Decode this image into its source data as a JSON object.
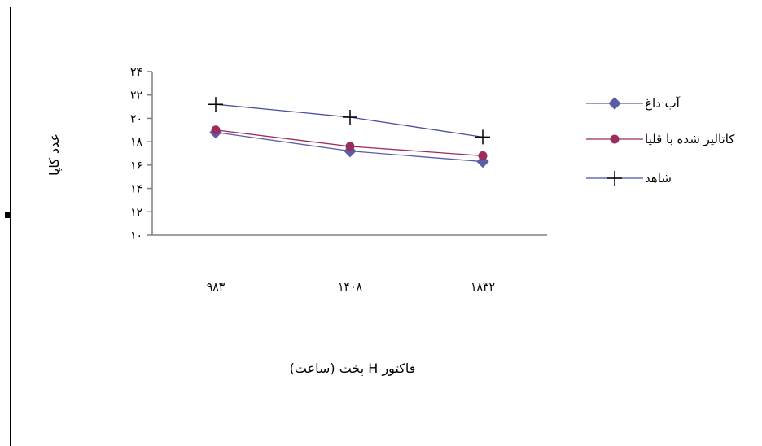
{
  "chart_data": {
    "type": "line",
    "categories": [
      "۹۸۳",
      "۱۴۰۸",
      "۱۸۳۲"
    ],
    "ylabel": "عدد کاپا",
    "xlabel": "فاکتور H پخت (ساعت)",
    "ylim": [
      10,
      24
    ],
    "yticks": [
      10,
      12,
      14,
      16,
      18,
      20,
      22,
      24
    ],
    "ytick_labels": [
      "۱۰",
      "۱۲",
      "۱۴",
      "۱۶",
      "۱۸",
      "۲۰",
      "۲۲",
      "۲۴"
    ],
    "grid": false,
    "legend_position": "right",
    "series": [
      {
        "name": "آب داغ",
        "values": [
          18.8,
          17.2,
          16.3
        ],
        "color": "#5b5ea6",
        "marker": "diamond"
      },
      {
        "name": "کاتالیز شده با قلیا",
        "values": [
          19.0,
          17.6,
          16.8
        ],
        "color": "#9b2c5e",
        "marker": "circle"
      },
      {
        "name": "شاهد",
        "values": [
          21.2,
          20.1,
          18.4
        ],
        "color": "#4a4fa0",
        "marker": "plus"
      }
    ]
  }
}
